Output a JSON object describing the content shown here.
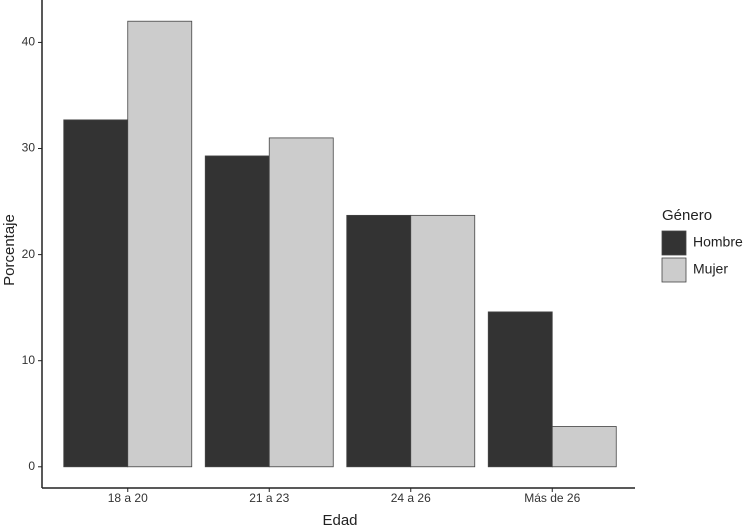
{
  "chart_data": {
    "type": "bar",
    "x_label": "Edad",
    "y_label": "Porcentaje",
    "categories": [
      "18 a 20",
      "21 a 23",
      "24 a 26",
      "Más de 26"
    ],
    "series": [
      {
        "name": "Hombre",
        "color": "#333333",
        "values": [
          32.7,
          29.3,
          23.7,
          14.6
        ]
      },
      {
        "name": "Mujer",
        "color": "#cccccc",
        "values": [
          42.0,
          31.0,
          23.7,
          3.8
        ]
      }
    ],
    "legend_title": "Género",
    "ylim": [
      -2,
      44
    ],
    "yticks": [
      0,
      10,
      20,
      30,
      40
    ],
    "grid": false,
    "legend": "right"
  }
}
